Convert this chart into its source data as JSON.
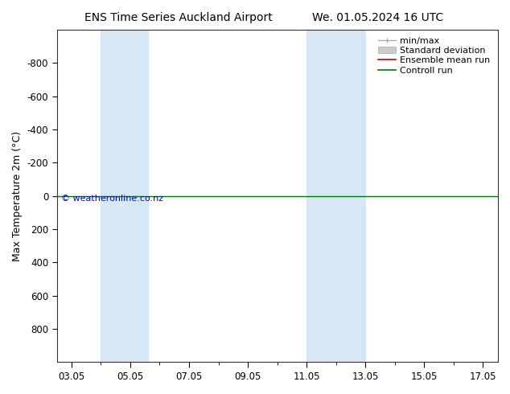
{
  "title_left": "ENS Time Series Auckland Airport",
  "title_right": "We. 01.05.2024 16 UTC",
  "ylabel": "Max Temperature 2m (°C)",
  "ylim": [
    -1000,
    1000
  ],
  "yticks": [
    -800,
    -600,
    -400,
    -200,
    0,
    200,
    400,
    600,
    800
  ],
  "ytick_labels": [
    "-800",
    "-600",
    "-400",
    "-200",
    "0",
    "200",
    "400",
    "600",
    "800"
  ],
  "y_inverted": true,
  "xtick_labels": [
    "03.05",
    "05.05",
    "07.05",
    "09.05",
    "11.05",
    "13.05",
    "15.05",
    "17.05"
  ],
  "xtick_positions": [
    3,
    5,
    7,
    9,
    11,
    13,
    15,
    17
  ],
  "xlim": [
    2.5,
    17.5
  ],
  "shaded_bands": [
    {
      "x_start": 4.0,
      "x_end": 5.6
    },
    {
      "x_start": 11.0,
      "x_end": 13.0
    }
  ],
  "shaded_color": "#d6e8f5",
  "horizontal_line_y": 0,
  "control_run_color": "#007700",
  "ensemble_mean_color": "#cc0000",
  "minmax_color": "#aaaaaa",
  "stddev_color": "#cccccc",
  "background_color": "#ffffff",
  "plot_bg_color": "#ffffff",
  "watermark_text": "© weatheronline.co.nz",
  "watermark_color": "#0000cc",
  "legend_entries": [
    "min/max",
    "Standard deviation",
    "Ensemble mean run",
    "Controll run"
  ],
  "legend_line_colors": [
    "#aaaaaa",
    "#cccccc",
    "#cc0000",
    "#007700"
  ],
  "title_fontsize": 10,
  "axis_fontsize": 9,
  "tick_fontsize": 8.5,
  "legend_fontsize": 8
}
